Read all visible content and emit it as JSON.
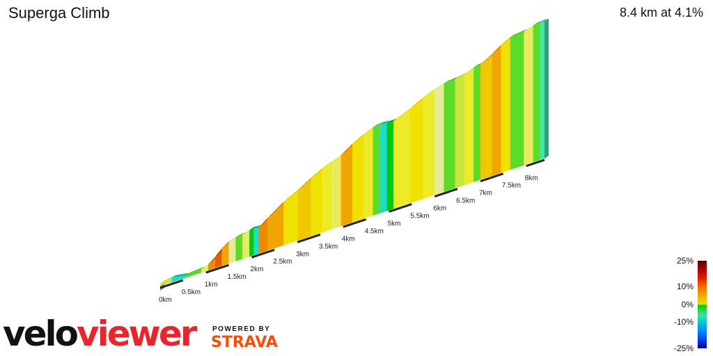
{
  "header": {
    "title": "Superga Climb",
    "summary": "8.4 km at 4.1%"
  },
  "chart_data": {
    "type": "area",
    "title": "Superga Climb",
    "distance_km": 8.4,
    "average_gradient_pct": 4.1,
    "x_tick_labels": [
      "0km",
      "0.5km",
      "1km",
      "1.5km",
      "2km",
      "2.5km",
      "3km",
      "3.5km",
      "4km",
      "4.5km",
      "5km",
      "5.5km",
      "6km",
      "6.5km",
      "7km",
      "7.5km",
      "8km"
    ],
    "gradient_scale": {
      "min": -25,
      "max": 25
    },
    "legend_labels": [
      "25%",
      "10%",
      "0%",
      "-10%",
      "-25%"
    ],
    "segments": [
      {
        "start_km": 0.0,
        "end_km": 0.25,
        "gradient": 2
      },
      {
        "start_km": 0.25,
        "end_km": 0.55,
        "gradient": -2
      },
      {
        "start_km": 0.55,
        "end_km": 0.9,
        "gradient": 1
      },
      {
        "start_km": 0.9,
        "end_km": 1.05,
        "gradient": 4
      },
      {
        "start_km": 1.05,
        "end_km": 1.2,
        "gradient": 9
      },
      {
        "start_km": 1.2,
        "end_km": 1.35,
        "gradient": 11
      },
      {
        "start_km": 1.35,
        "end_km": 1.5,
        "gradient": 8
      },
      {
        "start_km": 1.5,
        "end_km": 1.65,
        "gradient": 3
      },
      {
        "start_km": 1.65,
        "end_km": 1.8,
        "gradient": 1
      },
      {
        "start_km": 1.8,
        "end_km": 1.95,
        "gradient": 4
      },
      {
        "start_km": 1.95,
        "end_km": 2.05,
        "gradient": 0
      },
      {
        "start_km": 2.05,
        "end_km": 2.15,
        "gradient": -2
      },
      {
        "start_km": 2.15,
        "end_km": 2.35,
        "gradient": 9
      },
      {
        "start_km": 2.35,
        "end_km": 2.7,
        "gradient": 8
      },
      {
        "start_km": 2.7,
        "end_km": 3.0,
        "gradient": 6
      },
      {
        "start_km": 3.0,
        "end_km": 3.3,
        "gradient": 7
      },
      {
        "start_km": 3.3,
        "end_km": 3.55,
        "gradient": 6
      },
      {
        "start_km": 3.55,
        "end_km": 3.75,
        "gradient": 5
      },
      {
        "start_km": 3.75,
        "end_km": 3.95,
        "gradient": 4
      },
      {
        "start_km": 3.95,
        "end_km": 4.2,
        "gradient": 8
      },
      {
        "start_km": 4.2,
        "end_km": 4.45,
        "gradient": 6
      },
      {
        "start_km": 4.45,
        "end_km": 4.65,
        "gradient": 5
      },
      {
        "start_km": 4.65,
        "end_km": 4.8,
        "gradient": 1
      },
      {
        "start_km": 4.8,
        "end_km": 4.95,
        "gradient": -2
      },
      {
        "start_km": 4.95,
        "end_km": 5.1,
        "gradient": 0
      },
      {
        "start_km": 5.1,
        "end_km": 5.45,
        "gradient": 5
      },
      {
        "start_km": 5.45,
        "end_km": 5.75,
        "gradient": 6
      },
      {
        "start_km": 5.75,
        "end_km": 6.0,
        "gradient": 5
      },
      {
        "start_km": 6.0,
        "end_km": 6.2,
        "gradient": 3
      },
      {
        "start_km": 6.2,
        "end_km": 6.45,
        "gradient": 1
      },
      {
        "start_km": 6.45,
        "end_km": 6.65,
        "gradient": 2
      },
      {
        "start_km": 6.65,
        "end_km": 6.85,
        "gradient": 5
      },
      {
        "start_km": 6.85,
        "end_km": 7.0,
        "gradient": 1
      },
      {
        "start_km": 7.0,
        "end_km": 7.25,
        "gradient": 7
      },
      {
        "start_km": 7.25,
        "end_km": 7.45,
        "gradient": 8
      },
      {
        "start_km": 7.45,
        "end_km": 7.65,
        "gradient": 6
      },
      {
        "start_km": 7.65,
        "end_km": 7.95,
        "gradient": 1
      },
      {
        "start_km": 7.95,
        "end_km": 8.15,
        "gradient": 4
      },
      {
        "start_km": 8.15,
        "end_km": 8.3,
        "gradient": 1
      },
      {
        "start_km": 8.3,
        "end_km": 8.4,
        "gradient": -1
      }
    ]
  },
  "colors": {
    "brand_red": "#e8252b",
    "strava_orange": "#fc4c02"
  },
  "branding": {
    "logo_part1": "velo",
    "logo_part2": "viewer",
    "powered_by": "POWERED BY",
    "strava": "STRAVA"
  }
}
